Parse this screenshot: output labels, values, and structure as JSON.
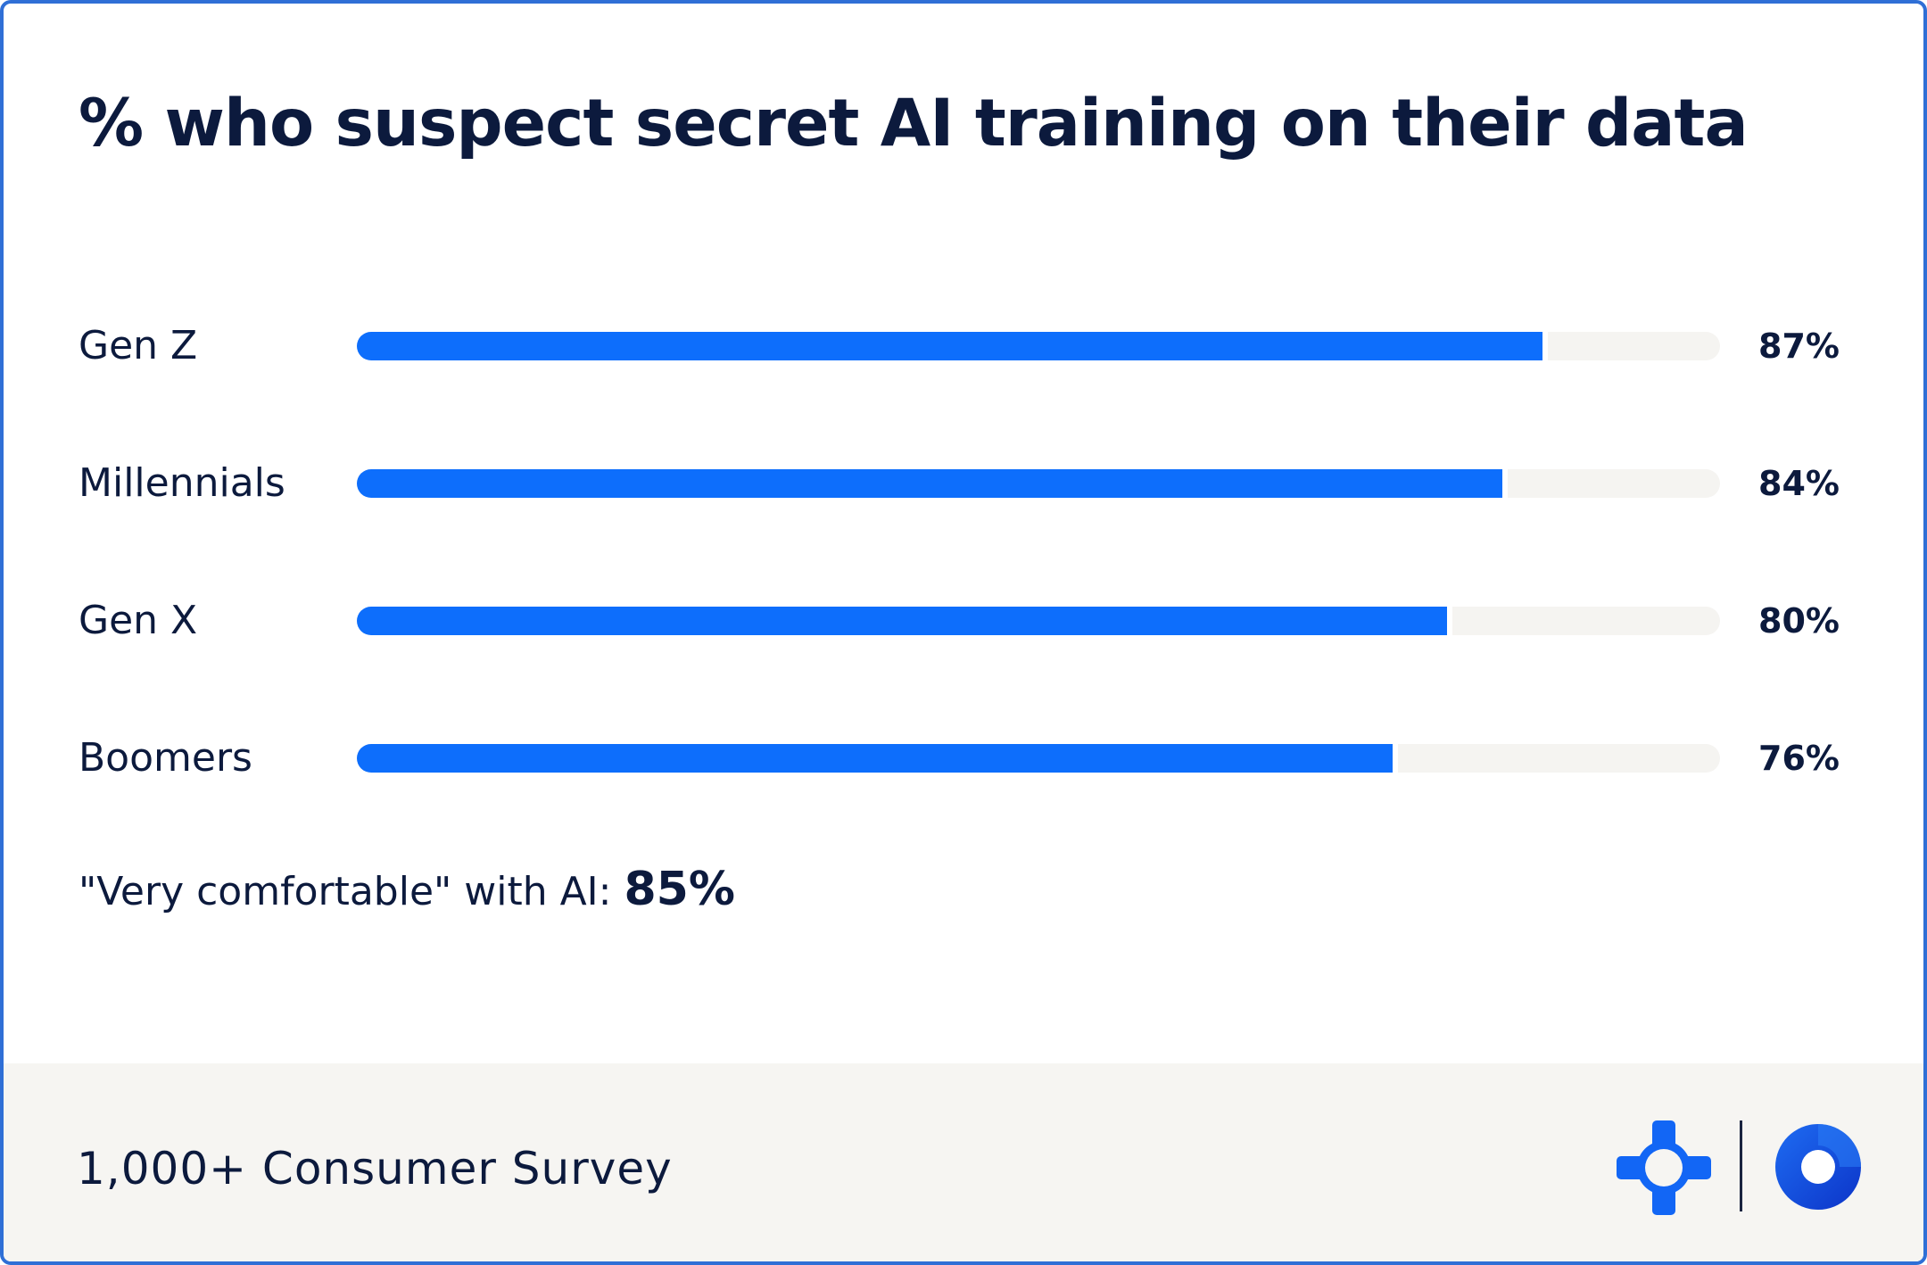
{
  "chart_data": {
    "type": "bar",
    "orientation": "horizontal",
    "title": "% who suspect secret AI training on their data",
    "categories": [
      "Gen Z",
      "Millennials",
      "Gen X",
      "Boomers"
    ],
    "values": [
      87,
      84,
      80,
      76
    ],
    "value_labels": [
      "87%",
      "84%",
      "80%",
      "76%"
    ],
    "xlim": [
      0,
      100
    ],
    "grid": false,
    "colors": {
      "bar": "#0d6efc",
      "track": "#f5f4f1"
    }
  },
  "callout": {
    "label": "\"Very comfortable\" with AI:",
    "value": "85%"
  },
  "footer": {
    "source": "1,000+ Consumer Survey"
  },
  "logos": [
    "cross-logo-icon",
    "ring-logo-icon"
  ]
}
